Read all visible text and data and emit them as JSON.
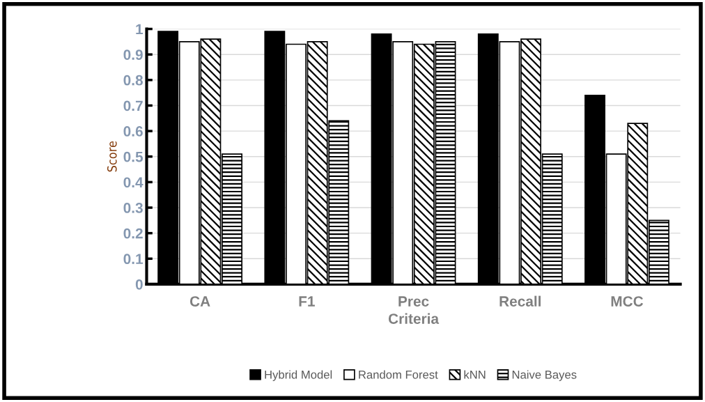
{
  "chart_data": {
    "type": "bar",
    "xlabel": "Criteria",
    "ylabel": "Score",
    "categories": [
      "CA",
      "F1",
      "Prec",
      "Recall",
      "MCC"
    ],
    "series": [
      {
        "name": "Hybrid Model",
        "color": "#000000",
        "values": [
          0.99,
          0.99,
          0.98,
          0.98,
          0.74
        ]
      },
      {
        "name": "Random Forest",
        "color": "#ffffff",
        "values": [
          0.95,
          0.94,
          0.95,
          0.95,
          0.51
        ]
      },
      {
        "name": "kNN",
        "color": "#000000",
        "values": [
          0.96,
          0.95,
          0.94,
          0.96,
          0.63
        ]
      },
      {
        "name": "Naive Bayes",
        "color": "#000000",
        "values": [
          0.51,
          0.64,
          0.95,
          0.51,
          0.25
        ]
      }
    ],
    "ylim": [
      0,
      1
    ],
    "yticks": [
      0,
      0.1,
      0.2,
      0.3,
      0.4,
      0.5,
      0.6,
      0.7,
      0.8,
      0.9,
      1
    ],
    "grid": "y",
    "legend": "bottom"
  }
}
